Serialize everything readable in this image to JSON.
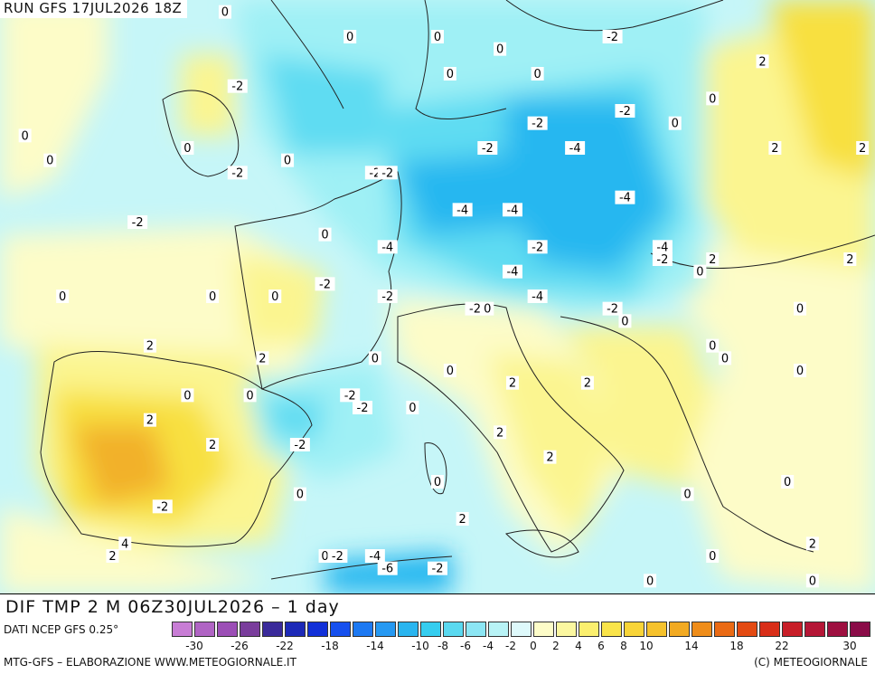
{
  "header": {
    "run_label": "RUN GFS 17JUL2026 18Z"
  },
  "title": {
    "text": "DIF TMP 2 M 06Z30JUL2026 – 1 day"
  },
  "footer": {
    "source": "DATI NCEP GFS 0.25°",
    "credit": "MTG-GFS – ELABORAZIONE WWW.METEOGIORNALE.IT",
    "copyright": "(C) METEOGIORNALE"
  },
  "colors": {
    "sea_cyan": "#c6f6f8",
    "light_cyan": "#9ff0f5",
    "mid_cyan": "#5fdcf2",
    "blue": "#26b7f0",
    "pale_yellow": "#fdfcc8",
    "yellow": "#fbf590",
    "gold": "#f8e040",
    "orange": "#f2b12a",
    "coast": "#222222"
  },
  "legend": {
    "colors": [
      "#c87dd5",
      "#b064c4",
      "#9c4fb6",
      "#7a3d9c",
      "#3a2a9a",
      "#1d2ab8",
      "#1230d8",
      "#1650ee",
      "#1d79f2",
      "#2699f2",
      "#2ab5ef",
      "#35cdef",
      "#5ad9f0",
      "#8ce6f4",
      "#b8f3f6",
      "#def9fb",
      "#fdfcc8",
      "#fbf7a0",
      "#fbef6e",
      "#fae44a",
      "#f8d438",
      "#f6c22c",
      "#f2aa22",
      "#ef8d1a",
      "#ea6a14",
      "#e34a12",
      "#d82e18",
      "#c81e28",
      "#b51636",
      "#9e1040",
      "#8a0c48"
    ],
    "tick_labels": [
      "-30",
      "-26",
      "-22",
      "-18",
      "-14",
      "-10",
      "-8",
      "-6",
      "-4",
      "-2",
      "0",
      "2",
      "4",
      "6",
      "8",
      "10",
      "14",
      "18",
      "22",
      "30"
    ]
  },
  "map_labels": [
    {
      "text": "0",
      "lon": -7,
      "lat": 71
    },
    {
      "text": "0",
      "lon": 3,
      "lat": 69
    },
    {
      "text": "-2",
      "lon": -6,
      "lat": 65
    },
    {
      "text": "0",
      "lon": -10,
      "lat": 60
    },
    {
      "text": "0",
      "lon": -23,
      "lat": 61
    },
    {
      "text": "0",
      "lon": -21,
      "lat": 59
    },
    {
      "text": "0",
      "lon": -2,
      "lat": 59
    },
    {
      "text": "-2",
      "lon": -6,
      "lat": 58
    },
    {
      "text": "-2",
      "lon": -14,
      "lat": 54
    },
    {
      "text": "-2",
      "lon": 5,
      "lat": 58
    },
    {
      "text": "-2",
      "lon": 6,
      "lat": 58
    },
    {
      "text": "0",
      "lon": 1,
      "lat": 53
    },
    {
      "text": "0",
      "lon": 10,
      "lat": 69
    },
    {
      "text": "0",
      "lon": 11,
      "lat": 66
    },
    {
      "text": "0",
      "lon": 15,
      "lat": 68
    },
    {
      "text": "0",
      "lon": 18,
      "lat": 66
    },
    {
      "text": "-2",
      "lon": 24,
      "lat": 69
    },
    {
      "text": "2",
      "lon": 36,
      "lat": 67
    },
    {
      "text": "0",
      "lon": 32,
      "lat": 64
    },
    {
      "text": "-2",
      "lon": 25,
      "lat": 63
    },
    {
      "text": "0",
      "lon": 29,
      "lat": 62
    },
    {
      "text": "-2",
      "lon": 18,
      "lat": 62
    },
    {
      "text": "-2",
      "lon": 14,
      "lat": 60
    },
    {
      "text": "-4",
      "lon": 21,
      "lat": 60
    },
    {
      "text": "2",
      "lon": 37,
      "lat": 60
    },
    {
      "text": "2",
      "lon": 44,
      "lat": 60
    },
    {
      "text": "-4",
      "lon": 12,
      "lat": 55
    },
    {
      "text": "-4",
      "lon": 16,
      "lat": 55
    },
    {
      "text": "-4",
      "lon": 25,
      "lat": 56
    },
    {
      "text": "-4",
      "lon": 6,
      "lat": 52
    },
    {
      "text": "-2",
      "lon": 18,
      "lat": 52
    },
    {
      "text": "-4",
      "lon": 28,
      "lat": 52
    },
    {
      "text": "-2",
      "lon": 28,
      "lat": 51
    },
    {
      "text": "2",
      "lon": 32,
      "lat": 51
    },
    {
      "text": "2",
      "lon": 43,
      "lat": 51
    },
    {
      "text": "-4",
      "lon": 16,
      "lat": 50
    },
    {
      "text": "0",
      "lon": 31,
      "lat": 50
    },
    {
      "text": "-2",
      "lon": 1,
      "lat": 49
    },
    {
      "text": "-2",
      "lon": 6,
      "lat": 48
    },
    {
      "text": "-4",
      "lon": 18,
      "lat": 48
    },
    {
      "text": "-2",
      "lon": 24,
      "lat": 47
    },
    {
      "text": "-2",
      "lon": 13,
      "lat": 47
    },
    {
      "text": "0",
      "lon": 14,
      "lat": 47
    },
    {
      "text": "0",
      "lon": 25,
      "lat": 46
    },
    {
      "text": "0",
      "lon": 39,
      "lat": 47
    },
    {
      "text": "0",
      "lon": -20,
      "lat": 48
    },
    {
      "text": "0",
      "lon": -8,
      "lat": 48
    },
    {
      "text": "0",
      "lon": -3,
      "lat": 48
    },
    {
      "text": "2",
      "lon": -13,
      "lat": 44
    },
    {
      "text": "2",
      "lon": -4,
      "lat": 43
    },
    {
      "text": "0",
      "lon": 5,
      "lat": 43
    },
    {
      "text": "0",
      "lon": 11,
      "lat": 42
    },
    {
      "text": "0",
      "lon": 32,
      "lat": 44
    },
    {
      "text": "0",
      "lon": 33,
      "lat": 43
    },
    {
      "text": "0",
      "lon": 39,
      "lat": 42
    },
    {
      "text": "2",
      "lon": 16,
      "lat": 41
    },
    {
      "text": "2",
      "lon": 22,
      "lat": 41
    },
    {
      "text": "0",
      "lon": -5,
      "lat": 40
    },
    {
      "text": "0",
      "lon": -10,
      "lat": 40
    },
    {
      "text": "-2",
      "lon": 3,
      "lat": 40
    },
    {
      "text": "-2",
      "lon": 4,
      "lat": 39
    },
    {
      "text": "0",
      "lon": 8,
      "lat": 39
    },
    {
      "text": "2",
      "lon": -13,
      "lat": 38
    },
    {
      "text": "2",
      "lon": -8,
      "lat": 36
    },
    {
      "text": "-2",
      "lon": -1,
      "lat": 36
    },
    {
      "text": "2",
      "lon": 15,
      "lat": 37
    },
    {
      "text": "2",
      "lon": 19,
      "lat": 35
    },
    {
      "text": "0",
      "lon": 10,
      "lat": 33
    },
    {
      "text": "0",
      "lon": 30,
      "lat": 32
    },
    {
      "text": "0",
      "lon": 38,
      "lat": 33
    },
    {
      "text": "0",
      "lon": -1,
      "lat": 32
    },
    {
      "text": "-2",
      "lon": -12,
      "lat": 31
    },
    {
      "text": "2",
      "lon": 12,
      "lat": 30
    },
    {
      "text": "4",
      "lon": -15,
      "lat": 28
    },
    {
      "text": "2",
      "lon": -16,
      "lat": 27
    },
    {
      "text": "0",
      "lon": 1,
      "lat": 27
    },
    {
      "text": "-2",
      "lon": 2,
      "lat": 27
    },
    {
      "text": "-4",
      "lon": 5,
      "lat": 27
    },
    {
      "text": "-6",
      "lon": 6,
      "lat": 26
    },
    {
      "text": "-2",
      "lon": 10,
      "lat": 26
    },
    {
      "text": "0",
      "lon": 32,
      "lat": 27
    },
    {
      "text": "2",
      "lon": 40,
      "lat": 28
    },
    {
      "text": "0",
      "lon": 27,
      "lat": 25
    },
    {
      "text": "0",
      "lon": 40,
      "lat": 25
    }
  ]
}
